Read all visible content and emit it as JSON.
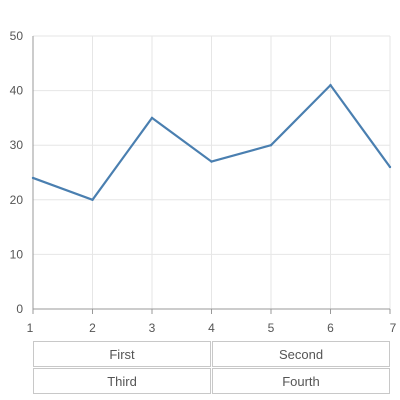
{
  "chart_data": {
    "type": "line",
    "x": [
      1,
      2,
      3,
      4,
      5,
      6,
      7
    ],
    "series": [
      {
        "values": [
          24,
          20,
          35,
          27,
          30,
          41,
          26
        ],
        "color": "#4a7fb0"
      }
    ],
    "xlim": [
      1,
      7
    ],
    "ylim": [
      0,
      50
    ],
    "xticks": [
      "1",
      "2",
      "3",
      "4",
      "5",
      "6",
      "7"
    ],
    "yticks": [
      "0",
      "10",
      "20",
      "30",
      "40",
      "50"
    ],
    "grid": true,
    "title": "",
    "xlabel": "",
    "ylabel": ""
  },
  "buttons": {
    "first": "First",
    "second": "Second",
    "third": "Third",
    "fourth": "Fourth"
  }
}
